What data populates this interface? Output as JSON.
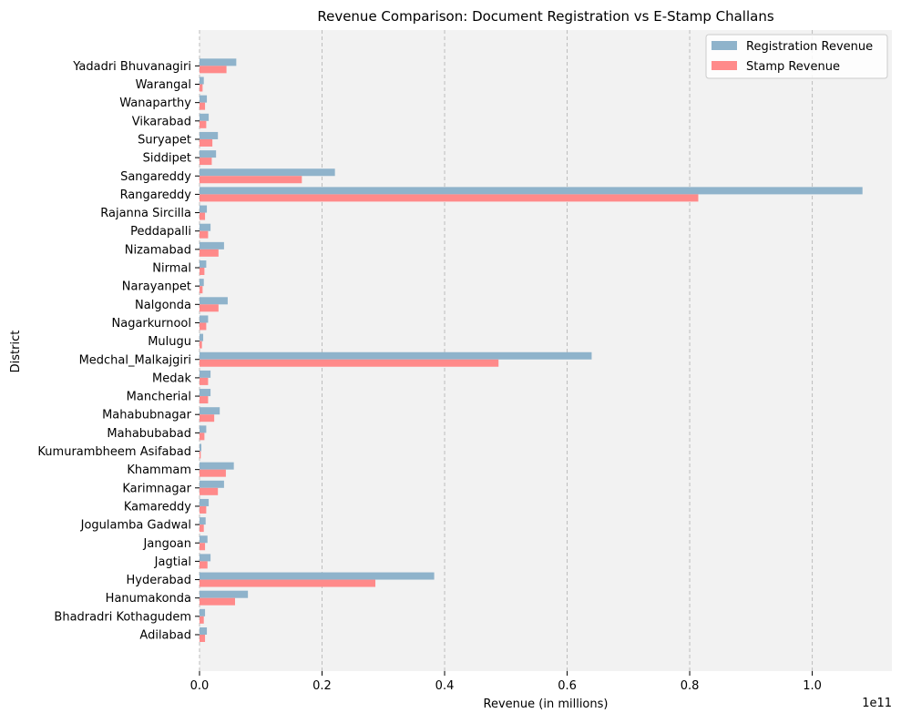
{
  "chart_data": {
    "type": "bar",
    "orientation": "horizontal",
    "title": "Revenue Comparison: Document Registration vs E-Stamp Challans",
    "xlabel": "Revenue (in millions)",
    "ylabel": "District",
    "x_offset_text": "1e11",
    "xlim": [
      0,
      1.13
    ],
    "x_ticks": [
      0.0,
      0.2,
      0.4,
      0.6,
      0.8,
      1.0
    ],
    "x_tick_labels": [
      "0.0",
      "0.2",
      "0.4",
      "0.6",
      "0.8",
      "1.0"
    ],
    "grid": "vertical dashed",
    "legend_placement": "top-right",
    "background": "#f2f2f2",
    "categories": [
      "Adilabad",
      "Bhadradri Kothagudem",
      "Hanumakonda",
      "Hyderabad",
      "Jagtial",
      "Jangoan",
      "Jogulamba Gadwal",
      "Kamareddy",
      "Karimnagar",
      "Khammam",
      "Kumurambheem Asifabad",
      "Mahabubabad",
      "Mahabubnagar",
      "Mancherial",
      "Medak",
      "Medchal_Malkajgiri",
      "Mulugu",
      "Nagarkurnool",
      "Nalgonda",
      "Narayanpet",
      "Nirmal",
      "Nizamabad",
      "Peddapalli",
      "Rajanna Sircilla",
      "Rangareddy",
      "Sangareddy",
      "Siddipet",
      "Suryapet",
      "Vikarabad",
      "Wanaparthy",
      "Warangal",
      "Yadadri Bhuvanagiri"
    ],
    "series": [
      {
        "name": "Registration Revenue",
        "color": "#8fb3cb",
        "values": [
          0.012,
          0.009,
          0.079,
          0.383,
          0.018,
          0.013,
          0.01,
          0.015,
          0.04,
          0.056,
          0.003,
          0.011,
          0.033,
          0.018,
          0.018,
          0.64,
          0.006,
          0.014,
          0.046,
          0.007,
          0.011,
          0.04,
          0.018,
          0.012,
          1.082,
          0.221,
          0.027,
          0.03,
          0.015,
          0.012,
          0.007,
          0.06
        ]
      },
      {
        "name": "Stamp Revenue",
        "color": "#ff8a8a",
        "values": [
          0.009,
          0.007,
          0.058,
          0.287,
          0.013,
          0.009,
          0.007,
          0.011,
          0.03,
          0.043,
          0.002,
          0.008,
          0.024,
          0.014,
          0.014,
          0.488,
          0.004,
          0.011,
          0.031,
          0.005,
          0.008,
          0.031,
          0.014,
          0.009,
          0.814,
          0.167,
          0.02,
          0.021,
          0.011,
          0.009,
          0.005,
          0.044
        ]
      }
    ]
  }
}
